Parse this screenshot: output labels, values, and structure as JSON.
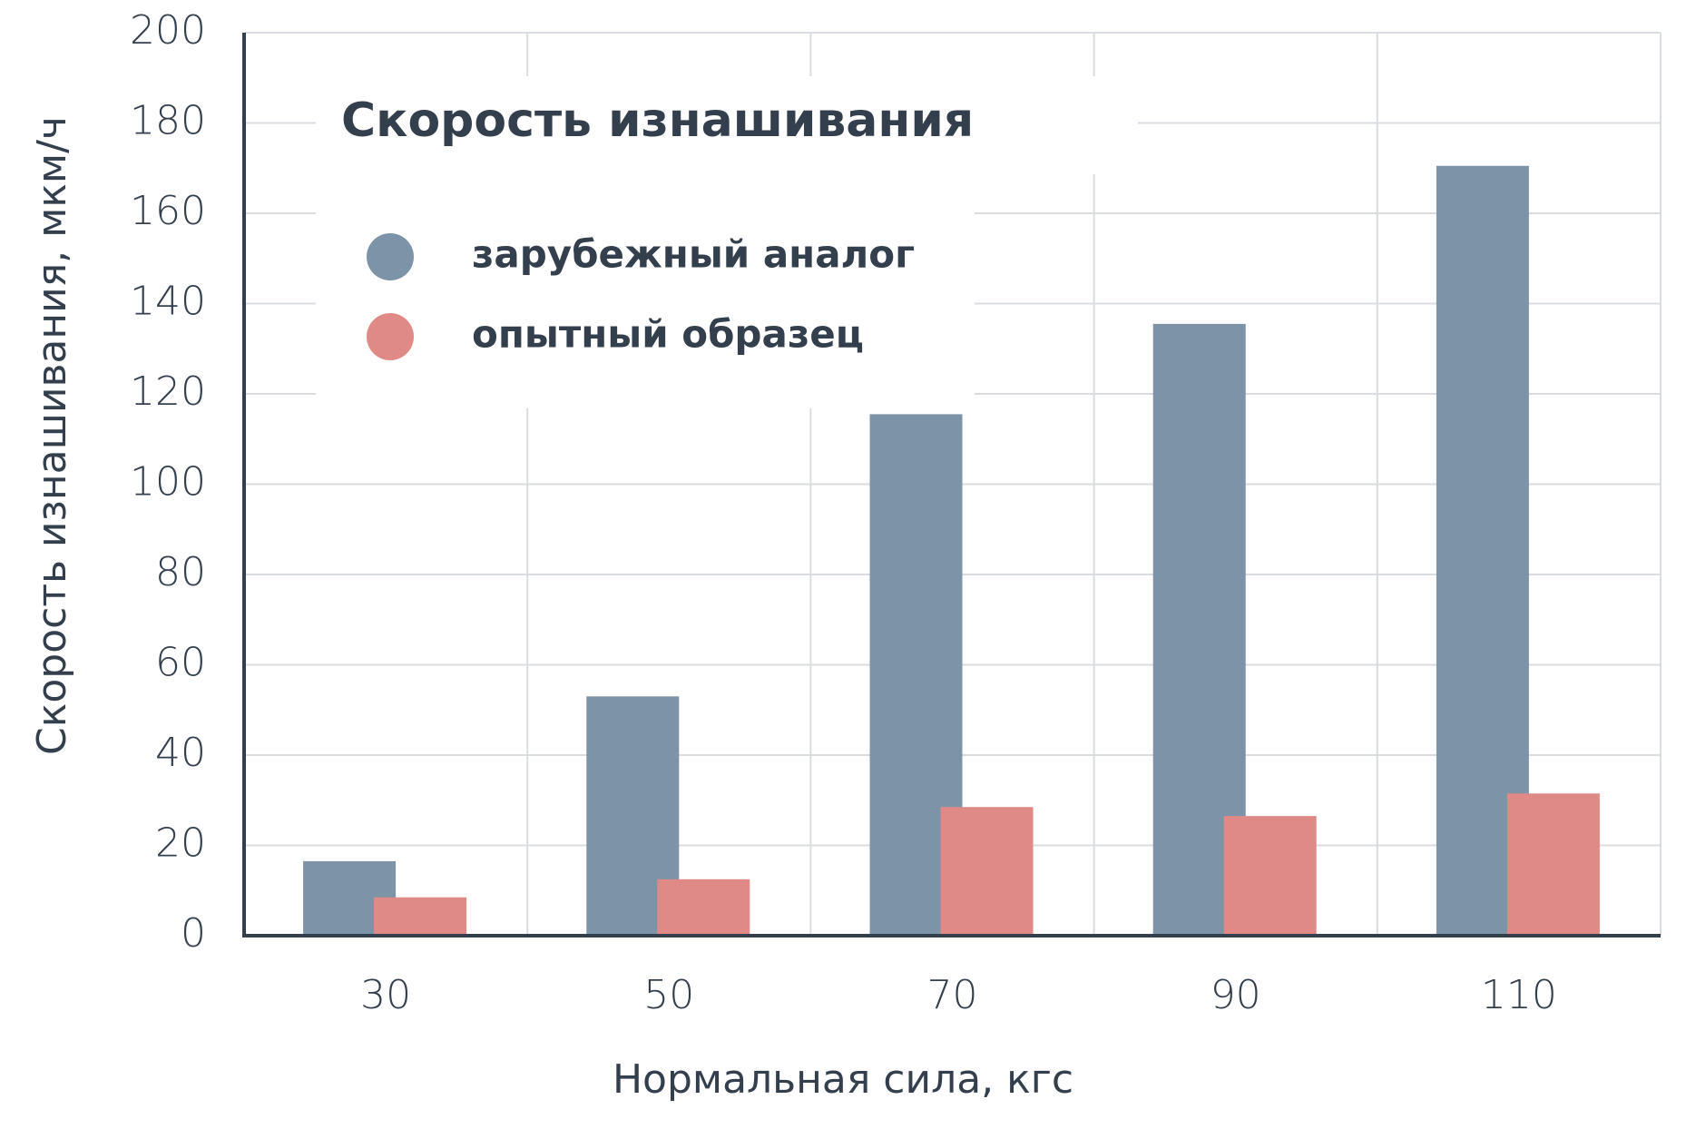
{
  "chart_data": {
    "type": "bar",
    "title": "Скорость изнашивания",
    "x_label": "Нормальная сила, кгс",
    "y_label": "Скорость изнашивания, мкм/ч",
    "categories": [
      "30",
      "50",
      "70",
      "90",
      "110"
    ],
    "series": [
      {
        "name": "зарубежный аналог",
        "color": "#7d93a7",
        "values": [
          16.5,
          53,
          115.5,
          135.5,
          170.5
        ]
      },
      {
        "name": "опытный образец",
        "color": "#e08a87",
        "values": [
          8.5,
          12.5,
          28.5,
          26.5,
          31.5
        ]
      }
    ],
    "ylim": [
      0,
      200
    ],
    "yticks": [
      0,
      20,
      40,
      60,
      80,
      100,
      120,
      140,
      160,
      180,
      200
    ],
    "grid": true
  }
}
